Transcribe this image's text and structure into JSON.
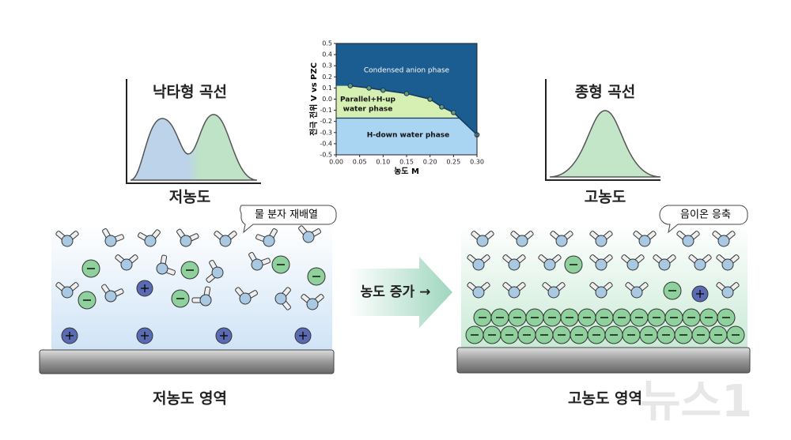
{
  "chart_data": {
    "type": "line",
    "x_label": "농도 M",
    "y_label": "전극 전위 V vs PZC",
    "x": [
      0.03,
      0.07,
      0.1,
      0.15,
      0.2,
      0.225,
      0.25,
      0.3
    ],
    "values": [
      0.12,
      0.1,
      0.08,
      0.05,
      0.0,
      -0.07,
      -0.12,
      -0.32
    ],
    "boundary_y": -0.17,
    "xlim": [
      0,
      0.3
    ],
    "ylim": [
      -0.5,
      0.5
    ],
    "xticks": [
      {
        "value": 0,
        "label": "0.00"
      },
      0.05,
      {
        "value": 0.1,
        "label": "0.10"
      },
      0.15,
      {
        "value": 0.2,
        "label": "0.20"
      },
      0.25,
      {
        "value": 0.3,
        "label": "0.30"
      }
    ],
    "yticks": [
      0.5,
      0.4,
      0.3,
      0.2,
      0.1,
      {
        "value": 0,
        "label": "0.0"
      },
      -0.1,
      -0.2,
      -0.3,
      -0.4,
      -0.5
    ],
    "region_labels": [
      "Condensed anion phase",
      "Parallel+H-up",
      "water phase",
      "H-down water phase"
    ],
    "colors": {
      "anion": "#1b5c91",
      "parallel": "#d6efb2",
      "hdown": "#a9d4f2",
      "line": "#16375a"
    }
  },
  "labels": {
    "left_curve": "낙타형 곡선",
    "left_axis": "저농도",
    "right_curve": "종형 곡선",
    "right_axis": "고농도",
    "left_callout": "물 분자 재배열",
    "right_callout": "음이온 응축",
    "arrow": "농도 증가 →",
    "left_region": "저농도 영역",
    "right_region": "고농도 영역",
    "watermark": "뉴스1"
  }
}
